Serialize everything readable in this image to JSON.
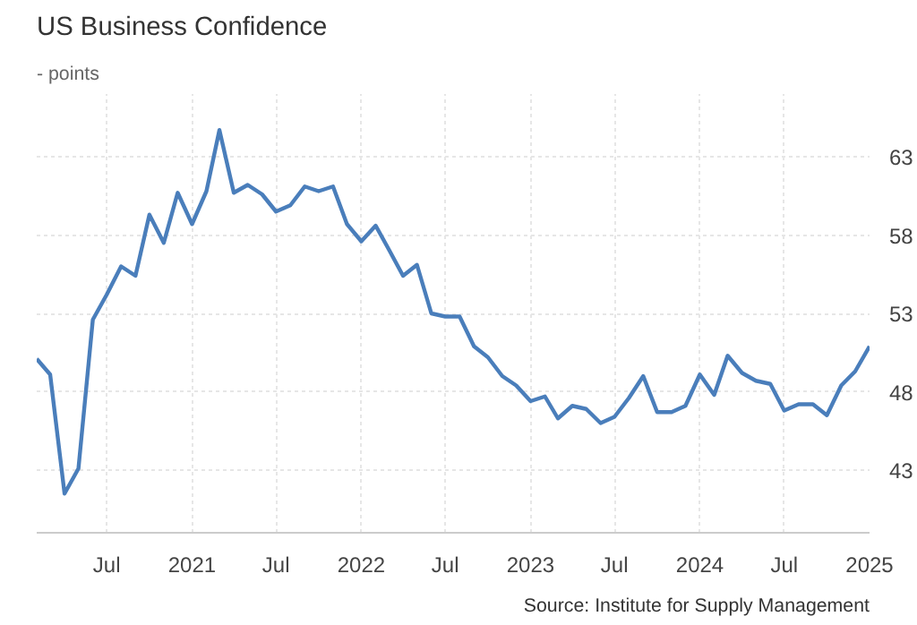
{
  "chart_data": {
    "type": "line",
    "title": "US Business Confidence",
    "subtitle": "- points",
    "annotations": [
      "Source: Institute for Supply Management"
    ],
    "x": [
      "2020-02",
      "2020-03",
      "2020-04",
      "2020-05",
      "2020-06",
      "2020-07",
      "2020-08",
      "2020-09",
      "2020-10",
      "2020-11",
      "2020-12",
      "2021-01",
      "2021-02",
      "2021-03",
      "2021-04",
      "2021-05",
      "2021-06",
      "2021-07",
      "2021-08",
      "2021-09",
      "2021-10",
      "2021-11",
      "2021-12",
      "2022-01",
      "2022-02",
      "2022-03",
      "2022-04",
      "2022-05",
      "2022-06",
      "2022-07",
      "2022-08",
      "2022-09",
      "2022-10",
      "2022-11",
      "2022-12",
      "2023-01",
      "2023-02",
      "2023-03",
      "2023-04",
      "2023-05",
      "2023-06",
      "2023-07",
      "2023-08",
      "2023-09",
      "2023-10",
      "2023-11",
      "2023-12",
      "2024-01",
      "2024-02",
      "2024-03",
      "2024-04",
      "2024-05",
      "2024-06",
      "2024-07",
      "2024-08",
      "2024-09",
      "2024-10",
      "2024-11",
      "2024-12",
      "2025-01"
    ],
    "series": [
      {
        "color": "#4a7ebb",
        "values": [
          50.1,
          49.1,
          41.5,
          43.1,
          52.6,
          54.2,
          56.0,
          55.4,
          59.3,
          57.5,
          60.7,
          58.7,
          60.8,
          64.7,
          60.7,
          61.2,
          60.6,
          59.5,
          59.9,
          61.1,
          60.8,
          61.1,
          58.7,
          57.6,
          58.6,
          57.1,
          55.4,
          56.1,
          53.0,
          52.8,
          52.8,
          50.9,
          50.2,
          49.0,
          48.4,
          47.4,
          47.7,
          46.3,
          47.1,
          46.9,
          46.0,
          46.4,
          47.6,
          49.0,
          46.7,
          46.7,
          47.1,
          49.1,
          47.8,
          50.3,
          49.2,
          48.7,
          48.5,
          46.8,
          47.2,
          47.2,
          46.5,
          48.4,
          49.3,
          50.9
        ]
      }
    ],
    "xlim": [
      "2020-02",
      "2025-01"
    ],
    "ylim": [
      39,
      67
    ],
    "yticks": [
      43,
      48,
      53,
      58,
      63
    ],
    "xticks": [
      {
        "value": "2020-07",
        "label": "Jul"
      },
      {
        "value": "2021-01",
        "label": "2021"
      },
      {
        "value": "2021-07",
        "label": "Jul"
      },
      {
        "value": "2022-01",
        "label": "2022"
      },
      {
        "value": "2022-07",
        "label": "Jul"
      },
      {
        "value": "2023-01",
        "label": "2023"
      },
      {
        "value": "2023-07",
        "label": "Jul"
      },
      {
        "value": "2024-01",
        "label": "2024"
      },
      {
        "value": "2024-07",
        "label": "Jul"
      },
      {
        "value": "2025-01",
        "label": "2025"
      }
    ],
    "grid": true,
    "line_style": "solid"
  }
}
